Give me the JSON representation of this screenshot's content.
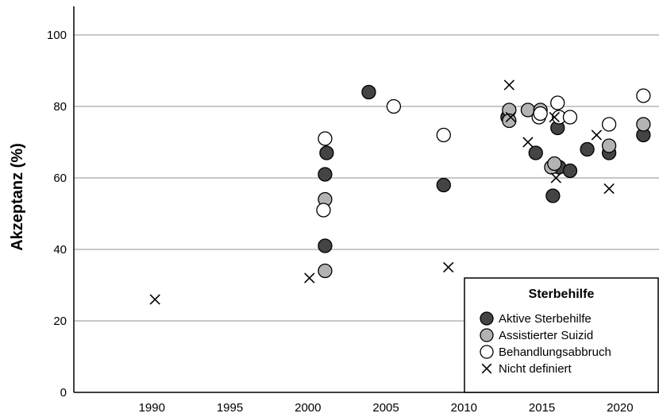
{
  "chart_data": {
    "type": "scatter",
    "title": "",
    "xlabel": "",
    "ylabel": "Akzeptanz (%)",
    "xlim": [
      1985,
      2022.5
    ],
    "ylim": [
      0,
      108
    ],
    "x_ticks": [
      1990,
      1995,
      2000,
      2005,
      2010,
      2015,
      2020
    ],
    "y_ticks": [
      0,
      20,
      40,
      60,
      80,
      100
    ],
    "grid": "horizontal",
    "legend": {
      "title": "Sterbehilfe",
      "placement": "bottom-right"
    },
    "colors": {
      "aktiv": "#444444",
      "assistiert": "#b3b3b3",
      "abbruch": "#ffffff",
      "grid": "#a6a6a6"
    },
    "series": [
      {
        "name": "Aktive Sterbehilfe",
        "marker": "circle",
        "color": "#444444",
        "points": [
          {
            "x": 2001.2,
            "y": 67
          },
          {
            "x": 2001.1,
            "y": 61
          },
          {
            "x": 2001.1,
            "y": 41
          },
          {
            "x": 2003.9,
            "y": 84
          },
          {
            "x": 2008.7,
            "y": 58
          },
          {
            "x": 2012.8,
            "y": 77
          },
          {
            "x": 2014.6,
            "y": 67
          },
          {
            "x": 2015.7,
            "y": 55
          },
          {
            "x": 2016.0,
            "y": 74
          },
          {
            "x": 2016.1,
            "y": 63
          },
          {
            "x": 2016.8,
            "y": 62
          },
          {
            "x": 2017.9,
            "y": 68
          },
          {
            "x": 2019.3,
            "y": 67
          },
          {
            "x": 2021.5,
            "y": 72
          }
        ]
      },
      {
        "name": "Assistierter Suizid",
        "marker": "circle",
        "color": "#b3b3b3",
        "points": [
          {
            "x": 2001.1,
            "y": 54
          },
          {
            "x": 2001.1,
            "y": 34
          },
          {
            "x": 2012.9,
            "y": 79
          },
          {
            "x": 2012.9,
            "y": 76
          },
          {
            "x": 2014.1,
            "y": 79
          },
          {
            "x": 2014.9,
            "y": 79
          },
          {
            "x": 2015.6,
            "y": 63
          },
          {
            "x": 2015.8,
            "y": 64
          },
          {
            "x": 2019.3,
            "y": 69
          },
          {
            "x": 2021.5,
            "y": 75
          }
        ]
      },
      {
        "name": "Behandlungsabbruch",
        "marker": "circle",
        "color": "#ffffff",
        "points": [
          {
            "x": 2001.1,
            "y": 71
          },
          {
            "x": 2001.0,
            "y": 51
          },
          {
            "x": 2005.5,
            "y": 80
          },
          {
            "x": 2008.7,
            "y": 72
          },
          {
            "x": 2014.8,
            "y": 77
          },
          {
            "x": 2014.9,
            "y": 78
          },
          {
            "x": 2016.0,
            "y": 81
          },
          {
            "x": 2016.1,
            "y": 77
          },
          {
            "x": 2016.8,
            "y": 77
          },
          {
            "x": 2019.3,
            "y": 75
          },
          {
            "x": 2021.5,
            "y": 83
          }
        ]
      },
      {
        "name": "Nicht definiert",
        "marker": "x",
        "color": "#000000",
        "points": [
          {
            "x": 1990.2,
            "y": 26
          },
          {
            "x": 2000.1,
            "y": 32
          },
          {
            "x": 2009.0,
            "y": 35
          },
          {
            "x": 2012.9,
            "y": 86
          },
          {
            "x": 2013.0,
            "y": 77
          },
          {
            "x": 2014.1,
            "y": 70
          },
          {
            "x": 2015.9,
            "y": 60
          },
          {
            "x": 2015.8,
            "y": 77
          },
          {
            "x": 2018.5,
            "y": 72
          },
          {
            "x": 2019.3,
            "y": 57
          }
        ]
      }
    ]
  }
}
